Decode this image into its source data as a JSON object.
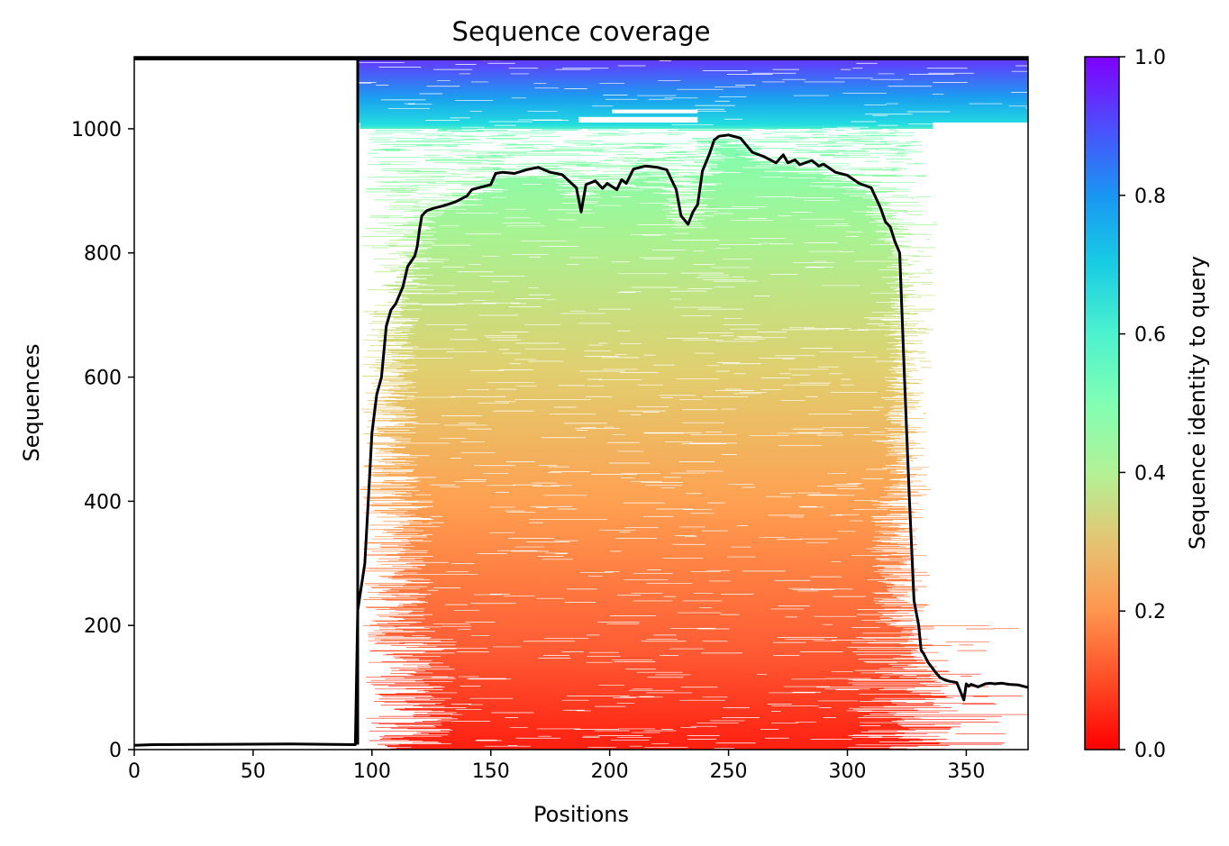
{
  "chart_data": {
    "type": "heatmap",
    "title": "Sequence coverage",
    "xlabel": "Positions",
    "ylabel": "Sequences",
    "xlim": [
      0,
      376
    ],
    "ylim": [
      0,
      1116
    ],
    "x_ticks": [
      "0",
      "50",
      "100",
      "150",
      "200",
      "250",
      "300",
      "350"
    ],
    "y_ticks": [
      "0",
      "200",
      "400",
      "600",
      "800",
      "1000"
    ],
    "colorbar": {
      "label": "Sequence identity to query",
      "range": [
        0,
        1
      ],
      "ticks": [
        "0.0",
        "0.2",
        "0.4",
        "0.6",
        "0.8",
        "1.0"
      ],
      "colormap": "rainbow_r"
    },
    "query_region": {
      "start": 94,
      "end": 376,
      "row": 1116
    },
    "coverage_line": {
      "x": [
        0,
        8,
        66,
        93,
        94,
        95,
        97,
        99,
        100,
        102,
        104,
        106,
        108,
        110,
        113,
        115,
        118,
        119,
        120,
        121,
        123,
        126,
        130,
        135,
        140,
        142,
        146,
        150,
        152,
        155,
        160,
        165,
        170,
        175,
        180,
        184,
        186,
        188,
        190,
        194,
        197,
        199,
        203,
        205,
        207,
        210,
        215,
        220,
        224,
        228,
        230,
        233,
        235,
        237,
        239,
        242,
        244,
        246,
        250,
        255,
        260,
        265,
        270,
        273,
        275,
        278,
        280,
        285,
        288,
        290,
        295,
        300,
        305,
        310,
        314,
        316,
        318,
        320,
        322,
        324,
        326,
        328,
        330,
        331,
        332,
        334,
        337,
        339,
        341,
        343,
        346,
        349,
        350,
        351,
        352,
        355,
        358,
        360,
        362,
        365,
        368,
        372,
        376
      ],
      "y": [
        7,
        8,
        9,
        8,
        224,
        249,
        300,
        440,
        510,
        572,
        600,
        682,
        708,
        718,
        745,
        778,
        795,
        810,
        838,
        860,
        868,
        872,
        876,
        882,
        892,
        902,
        906,
        910,
        928,
        930,
        928,
        934,
        938,
        930,
        926,
        912,
        905,
        866,
        910,
        916,
        904,
        912,
        902,
        918,
        912,
        935,
        940,
        938,
        934,
        902,
        860,
        846,
        866,
        878,
        932,
        960,
        982,
        988,
        990,
        985,
        962,
        955,
        945,
        958,
        945,
        950,
        942,
        949,
        940,
        943,
        930,
        925,
        912,
        905,
        872,
        850,
        842,
        818,
        800,
        600,
        410,
        240,
        200,
        160,
        155,
        140,
        125,
        116,
        112,
        110,
        108,
        80,
        106,
        102,
        105,
        101,
        106,
        107,
        106,
        107,
        105,
        104,
        100
      ]
    }
  }
}
